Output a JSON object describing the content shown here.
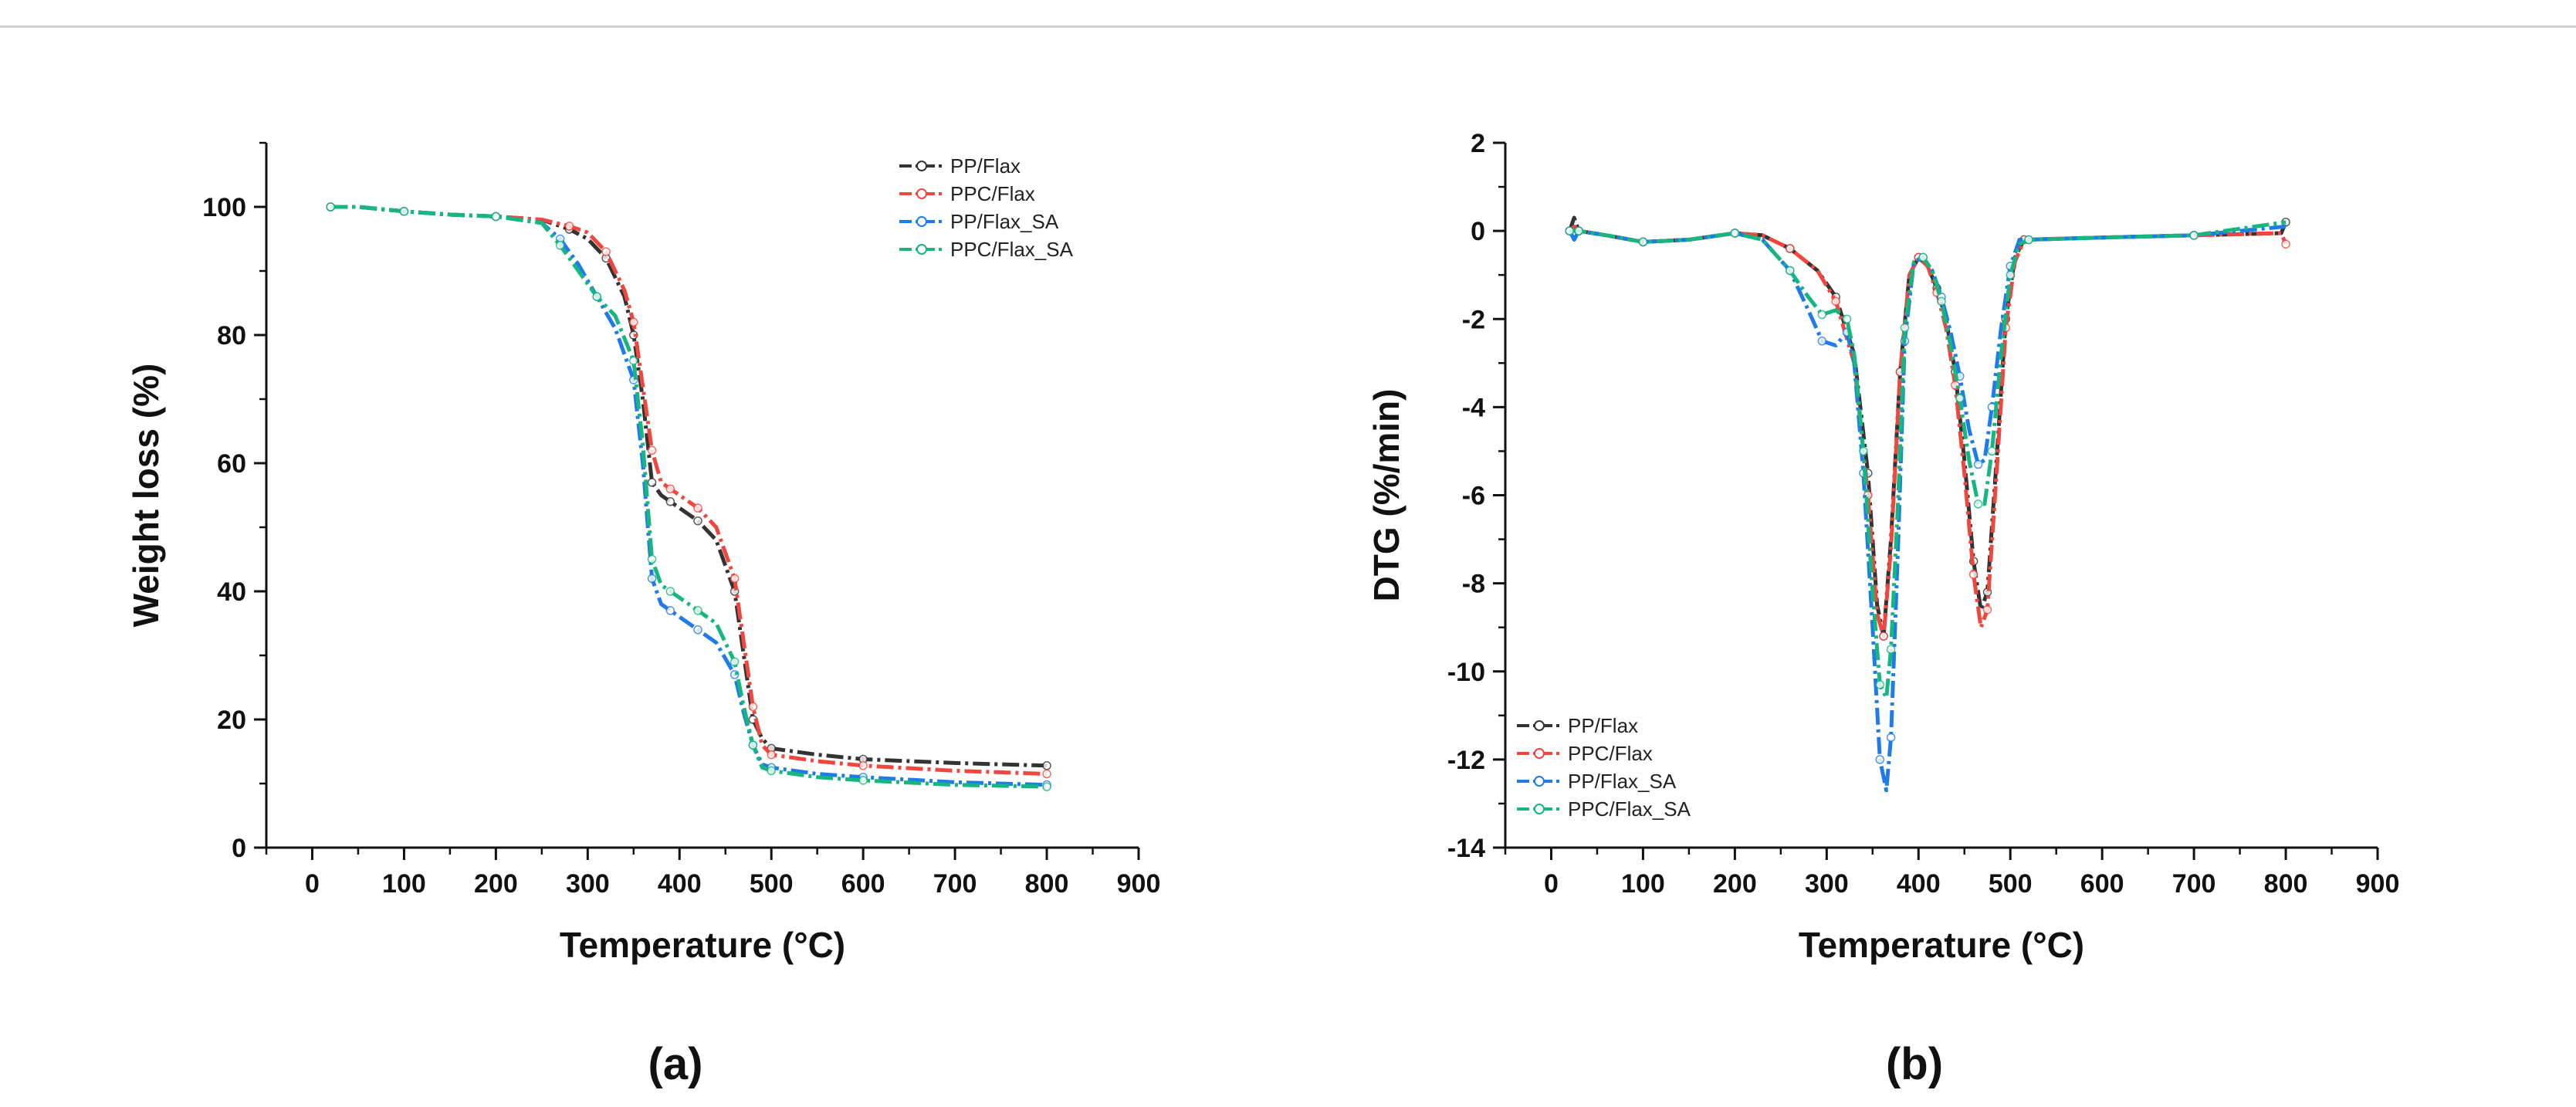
{
  "colors": {
    "PP/Flax": "#333333",
    "PPC/Flax": "#f0463e",
    "PP/Flax_SA": "#1f7bea",
    "PPC/Flax_SA": "#16b681"
  },
  "panels": [
    {
      "label": "(a)"
    },
    {
      "label": "(b)"
    }
  ],
  "chart_data": [
    {
      "type": "line",
      "panel": "(a)",
      "xlabel": "Temperature (°C)",
      "ylabel": "Weight loss (%)",
      "xlim": [
        -50,
        900
      ],
      "ylim": [
        0,
        110
      ],
      "xticks": [
        0,
        100,
        200,
        300,
        400,
        500,
        600,
        700,
        800,
        900
      ],
      "yticks": [
        0,
        20,
        40,
        60,
        80,
        100
      ],
      "legend_position": "top-right",
      "series": [
        {
          "name": "PP/Flax",
          "x": [
            20,
            50,
            100,
            150,
            200,
            250,
            280,
            300,
            320,
            340,
            350,
            360,
            370,
            380,
            390,
            400,
            420,
            440,
            460,
            470,
            480,
            490,
            500,
            550,
            600,
            700,
            800
          ],
          "y": [
            100,
            100,
            99.3,
            98.8,
            98.5,
            98,
            96.5,
            95,
            92,
            86,
            80,
            70,
            57,
            55,
            54,
            53,
            51,
            48,
            40,
            30,
            20,
            17,
            15.5,
            14.5,
            13.8,
            13.2,
            12.8
          ]
        },
        {
          "name": "PPC/Flax",
          "x": [
            20,
            50,
            100,
            150,
            200,
            250,
            280,
            300,
            320,
            340,
            350,
            360,
            370,
            380,
            390,
            400,
            420,
            440,
            460,
            470,
            480,
            490,
            500,
            550,
            600,
            700,
            800
          ],
          "y": [
            100,
            100,
            99.3,
            98.8,
            98.5,
            98,
            97,
            96,
            93,
            87,
            82,
            72,
            62,
            57,
            56,
            55,
            53,
            50,
            42,
            32,
            22,
            16,
            14.5,
            13.5,
            12.8,
            12,
            11.5
          ]
        },
        {
          "name": "PP/Flax_SA",
          "x": [
            20,
            50,
            100,
            150,
            200,
            250,
            270,
            290,
            310,
            330,
            350,
            360,
            370,
            380,
            390,
            400,
            420,
            440,
            460,
            470,
            480,
            490,
            500,
            550,
            600,
            700,
            800
          ],
          "y": [
            100,
            100,
            99.3,
            98.8,
            98.5,
            97.5,
            95,
            91,
            86,
            81,
            73,
            60,
            42,
            38,
            37,
            36,
            34,
            32,
            27,
            21,
            16,
            13,
            12.5,
            11.5,
            11,
            10.2,
            9.8
          ]
        },
        {
          "name": "PPC/Flax_SA",
          "x": [
            20,
            50,
            100,
            150,
            200,
            250,
            270,
            290,
            310,
            330,
            350,
            360,
            370,
            380,
            390,
            400,
            420,
            440,
            460,
            470,
            480,
            490,
            500,
            550,
            600,
            700,
            800
          ],
          "y": [
            100,
            100,
            99.3,
            98.8,
            98.5,
            97.5,
            94,
            90,
            86,
            83,
            76,
            63,
            45,
            41,
            40,
            39,
            37,
            35,
            29,
            22,
            16,
            12.5,
            12,
            11,
            10.5,
            9.8,
            9.5
          ]
        }
      ]
    },
    {
      "type": "line",
      "panel": "(b)",
      "xlabel": "Temperature (°C)",
      "ylabel": "DTG (%/min)",
      "xlim": [
        -50,
        900
      ],
      "ylim": [
        -14,
        2
      ],
      "xticks": [
        0,
        100,
        200,
        300,
        400,
        500,
        600,
        700,
        800,
        900
      ],
      "yticks": [
        2,
        0,
        -2,
        -4,
        -6,
        -8,
        -10,
        -12,
        -14
      ],
      "legend_position": "bottom-left",
      "series": [
        {
          "name": "PP/Flax",
          "x": [
            20,
            25,
            30,
            60,
            100,
            150,
            200,
            230,
            260,
            290,
            310,
            330,
            345,
            355,
            362,
            370,
            380,
            390,
            400,
            410,
            420,
            430,
            440,
            450,
            460,
            468,
            475,
            485,
            495,
            505,
            515,
            600,
            700,
            795,
            800
          ],
          "y": [
            0,
            0.3,
            0,
            -0.1,
            -0.25,
            -0.2,
            -0.05,
            -0.1,
            -0.4,
            -0.9,
            -1.5,
            -2.8,
            -5.5,
            -8.5,
            -9.2,
            -7,
            -3.2,
            -1,
            -0.6,
            -0.8,
            -1.3,
            -2,
            -3.2,
            -5.2,
            -7.5,
            -8.6,
            -8.2,
            -5.2,
            -2,
            -0.6,
            -0.2,
            -0.15,
            -0.1,
            -0.05,
            0.2
          ]
        },
        {
          "name": "PPC/Flax",
          "x": [
            20,
            25,
            30,
            60,
            100,
            150,
            200,
            230,
            260,
            290,
            310,
            330,
            345,
            355,
            362,
            370,
            380,
            390,
            400,
            410,
            420,
            430,
            440,
            450,
            460,
            468,
            475,
            485,
            495,
            505,
            515,
            600,
            700,
            795,
            800
          ],
          "y": [
            0,
            0.1,
            0,
            -0.1,
            -0.25,
            -0.2,
            -0.05,
            -0.1,
            -0.4,
            -0.9,
            -1.6,
            -3,
            -6,
            -8.7,
            -9.2,
            -7.2,
            -3.2,
            -1,
            -0.6,
            -0.8,
            -1.4,
            -2.2,
            -3.5,
            -5.5,
            -7.8,
            -9,
            -8.6,
            -5.5,
            -2.2,
            -0.7,
            -0.2,
            -0.15,
            -0.1,
            -0.05,
            -0.3
          ]
        },
        {
          "name": "PP/Flax_SA",
          "x": [
            20,
            25,
            30,
            60,
            100,
            150,
            200,
            230,
            260,
            280,
            295,
            310,
            322,
            330,
            340,
            350,
            358,
            365,
            370,
            378,
            385,
            395,
            405,
            415,
            425,
            435,
            445,
            455,
            465,
            472,
            480,
            490,
            500,
            510,
            520,
            600,
            700,
            800
          ],
          "y": [
            0,
            -0.2,
            0,
            -0.1,
            -0.25,
            -0.2,
            -0.05,
            -0.2,
            -0.9,
            -1.8,
            -2.5,
            -2.6,
            -2.3,
            -3,
            -5.5,
            -9,
            -12,
            -12.7,
            -11.5,
            -7,
            -2.5,
            -0.7,
            -0.6,
            -0.9,
            -1.5,
            -2.3,
            -3.3,
            -4.5,
            -5.3,
            -5.2,
            -4,
            -2.2,
            -0.8,
            -0.2,
            -0.2,
            -0.15,
            -0.1,
            0.1
          ]
        },
        {
          "name": "PPC/Flax_SA",
          "x": [
            20,
            25,
            30,
            60,
            100,
            150,
            200,
            230,
            260,
            280,
            295,
            310,
            322,
            330,
            340,
            350,
            358,
            365,
            370,
            378,
            385,
            395,
            405,
            415,
            425,
            435,
            445,
            455,
            465,
            472,
            480,
            490,
            500,
            510,
            520,
            600,
            700,
            800
          ],
          "y": [
            0,
            0,
            0,
            -0.1,
            -0.25,
            -0.2,
            -0.05,
            -0.2,
            -0.9,
            -1.5,
            -1.9,
            -1.8,
            -2,
            -2.8,
            -5,
            -8.2,
            -10.3,
            -10.6,
            -9.5,
            -6,
            -2.2,
            -0.7,
            -0.6,
            -0.9,
            -1.6,
            -2.6,
            -3.8,
            -5.2,
            -6.2,
            -6.2,
            -5,
            -2.8,
            -1,
            -0.3,
            -0.2,
            -0.15,
            -0.1,
            0.2
          ]
        }
      ]
    }
  ]
}
